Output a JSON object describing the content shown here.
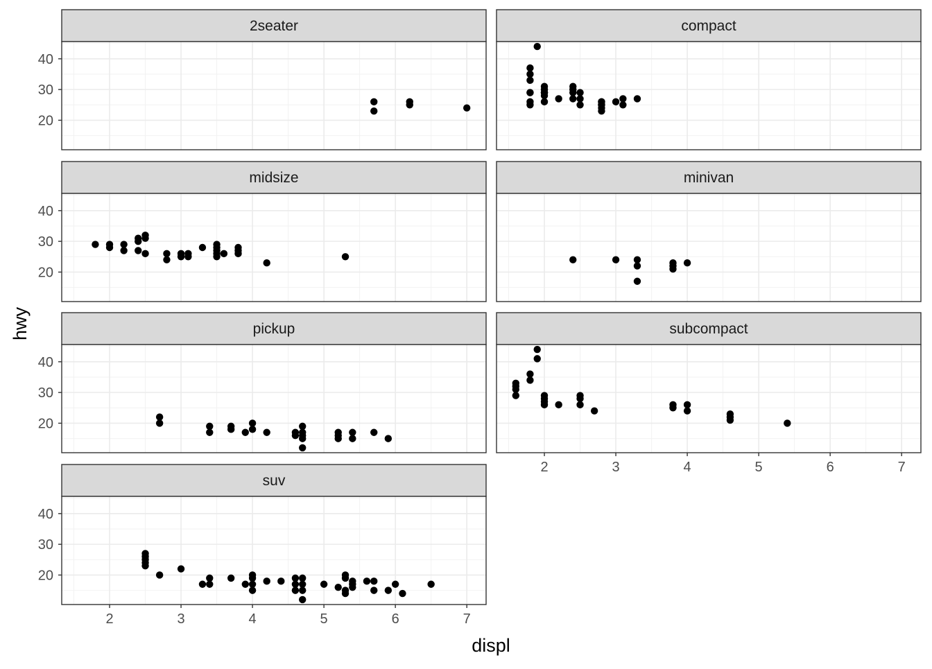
{
  "chart_data": {
    "type": "scatter",
    "xlabel": "displ",
    "ylabel": "hwy",
    "xlim": [
      1.33,
      7.27
    ],
    "ylim": [
      10.4,
      45.6
    ],
    "x_ticks": [
      2,
      3,
      4,
      5,
      6,
      7
    ],
    "y_ticks": [
      20,
      30,
      40
    ],
    "grid": true,
    "facets": [
      {
        "name": "2seater",
        "points": [
          [
            5.7,
            26
          ],
          [
            5.7,
            23
          ],
          [
            6.2,
            26
          ],
          [
            6.2,
            25
          ],
          [
            7.0,
            24
          ]
        ]
      },
      {
        "name": "compact",
        "points": [
          [
            1.8,
            29
          ],
          [
            1.8,
            29
          ],
          [
            2.0,
            31
          ],
          [
            2.0,
            30
          ],
          [
            2.8,
            26
          ],
          [
            2.8,
            26
          ],
          [
            3.1,
            27
          ],
          [
            1.8,
            26
          ],
          [
            1.8,
            25
          ],
          [
            2.0,
            28
          ],
          [
            2.0,
            29
          ],
          [
            2.8,
            25
          ],
          [
            2.8,
            25
          ],
          [
            3.1,
            25
          ],
          [
            2.4,
            27
          ],
          [
            2.4,
            30
          ],
          [
            2.5,
            27
          ],
          [
            2.5,
            29
          ],
          [
            3.0,
            26
          ],
          [
            3.3,
            27
          ],
          [
            1.8,
            33
          ],
          [
            1.8,
            35
          ],
          [
            1.8,
            37
          ],
          [
            1.9,
            44
          ],
          [
            2.0,
            29
          ],
          [
            2.0,
            26
          ],
          [
            2.0,
            29
          ],
          [
            2.2,
            27
          ],
          [
            2.4,
            31
          ],
          [
            2.4,
            29
          ],
          [
            2.5,
            25
          ],
          [
            2.8,
            23
          ],
          [
            2.8,
            24
          ]
        ]
      },
      {
        "name": "midsize",
        "points": [
          [
            1.8,
            29
          ],
          [
            2.0,
            29
          ],
          [
            2.0,
            28
          ],
          [
            2.2,
            29
          ],
          [
            2.2,
            27
          ],
          [
            2.4,
            31
          ],
          [
            2.4,
            30
          ],
          [
            2.4,
            27
          ],
          [
            2.5,
            32
          ],
          [
            2.5,
            31
          ],
          [
            2.5,
            26
          ],
          [
            2.8,
            26
          ],
          [
            2.8,
            24
          ],
          [
            3.0,
            26
          ],
          [
            3.0,
            25
          ],
          [
            3.1,
            26
          ],
          [
            3.1,
            25
          ],
          [
            3.3,
            28
          ],
          [
            3.5,
            29
          ],
          [
            3.5,
            28
          ],
          [
            3.5,
            27
          ],
          [
            3.5,
            26
          ],
          [
            3.5,
            25
          ],
          [
            3.6,
            26
          ],
          [
            3.8,
            28
          ],
          [
            3.8,
            27
          ],
          [
            3.8,
            26
          ],
          [
            4.2,
            23
          ],
          [
            5.3,
            25
          ]
        ]
      },
      {
        "name": "minivan",
        "points": [
          [
            2.4,
            24
          ],
          [
            3.0,
            24
          ],
          [
            3.3,
            24
          ],
          [
            3.3,
            22
          ],
          [
            3.3,
            17
          ],
          [
            3.8,
            23
          ],
          [
            3.8,
            22
          ],
          [
            3.8,
            21
          ],
          [
            4.0,
            23
          ]
        ]
      },
      {
        "name": "pickup",
        "points": [
          [
            2.7,
            22
          ],
          [
            2.7,
            20
          ],
          [
            3.4,
            19
          ],
          [
            3.4,
            17
          ],
          [
            3.7,
            19
          ],
          [
            3.7,
            18
          ],
          [
            3.9,
            17
          ],
          [
            4.0,
            20
          ],
          [
            4.0,
            18
          ],
          [
            4.2,
            17
          ],
          [
            4.6,
            17
          ],
          [
            4.6,
            16
          ],
          [
            4.7,
            19
          ],
          [
            4.7,
            17
          ],
          [
            4.7,
            16
          ],
          [
            4.7,
            15
          ],
          [
            4.7,
            12
          ],
          [
            5.2,
            17
          ],
          [
            5.2,
            16
          ],
          [
            5.2,
            15
          ],
          [
            5.4,
            17
          ],
          [
            5.4,
            15
          ],
          [
            5.7,
            17
          ],
          [
            5.9,
            15
          ]
        ]
      },
      {
        "name": "subcompact",
        "points": [
          [
            1.6,
            33
          ],
          [
            1.6,
            32
          ],
          [
            1.6,
            31
          ],
          [
            1.6,
            29
          ],
          [
            1.8,
            36
          ],
          [
            1.8,
            34
          ],
          [
            1.9,
            44
          ],
          [
            1.9,
            41
          ],
          [
            2.0,
            29
          ],
          [
            2.0,
            28
          ],
          [
            2.0,
            27
          ],
          [
            2.0,
            26
          ],
          [
            2.2,
            26
          ],
          [
            2.5,
            29
          ],
          [
            2.5,
            28
          ],
          [
            2.5,
            26
          ],
          [
            2.7,
            24
          ],
          [
            3.8,
            26
          ],
          [
            3.8,
            25
          ],
          [
            4.0,
            26
          ],
          [
            4.0,
            24
          ],
          [
            4.6,
            23
          ],
          [
            4.6,
            22
          ],
          [
            4.6,
            21
          ],
          [
            5.4,
            20
          ]
        ]
      },
      {
        "name": "suv",
        "points": [
          [
            2.5,
            27
          ],
          [
            2.5,
            26
          ],
          [
            2.5,
            25
          ],
          [
            2.5,
            24
          ],
          [
            2.5,
            23
          ],
          [
            2.7,
            20
          ],
          [
            3.0,
            22
          ],
          [
            3.3,
            17
          ],
          [
            3.4,
            19
          ],
          [
            3.4,
            17
          ],
          [
            3.7,
            19
          ],
          [
            3.9,
            17
          ],
          [
            4.0,
            20
          ],
          [
            4.0,
            19
          ],
          [
            4.0,
            17
          ],
          [
            4.0,
            15
          ],
          [
            4.2,
            18
          ],
          [
            4.4,
            18
          ],
          [
            4.6,
            19
          ],
          [
            4.6,
            17
          ],
          [
            4.6,
            15
          ],
          [
            4.7,
            19
          ],
          [
            4.7,
            17
          ],
          [
            4.7,
            15
          ],
          [
            4.7,
            12
          ],
          [
            5.0,
            17
          ],
          [
            5.2,
            16
          ],
          [
            5.3,
            20
          ],
          [
            5.3,
            19
          ],
          [
            5.3,
            15
          ],
          [
            5.3,
            14
          ],
          [
            5.4,
            18
          ],
          [
            5.4,
            17
          ],
          [
            5.4,
            16
          ],
          [
            5.6,
            18
          ],
          [
            5.7,
            18
          ],
          [
            5.7,
            15
          ],
          [
            5.9,
            15
          ],
          [
            6.0,
            17
          ],
          [
            6.1,
            14
          ],
          [
            6.5,
            17
          ]
        ]
      }
    ]
  }
}
